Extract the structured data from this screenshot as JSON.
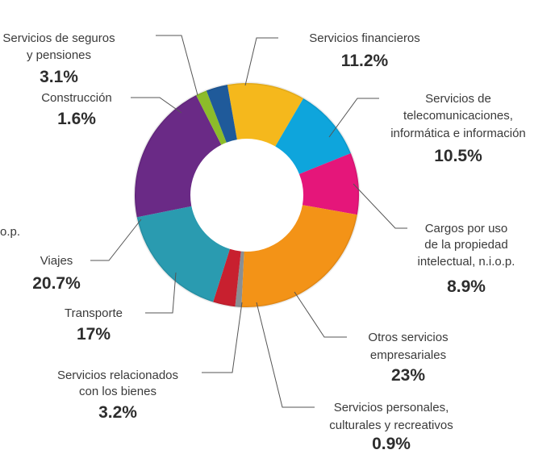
{
  "chart_data": {
    "type": "donut",
    "categories": [
      [
        "Servicios financieros"
      ],
      [
        "Servicios de",
        "telecomunicaciones,",
        "informática e información"
      ],
      [
        "Cargos por uso",
        "de la propiedad",
        "intelectual, n.i.o.p."
      ],
      [
        "Otros servicios",
        "empresariales"
      ],
      [
        "Servicios personales,",
        "culturales y recreativos"
      ],
      [
        "Servicios relacionados",
        "con los bienes"
      ],
      [
        "Transporte"
      ],
      [
        "Viajes"
      ],
      [
        "Construcción"
      ],
      [
        "Servicios de seguros",
        "y pensiones"
      ]
    ],
    "values": [
      11.2,
      10.5,
      8.9,
      23,
      0.9,
      3.2,
      17,
      20.7,
      1.6,
      3.1
    ],
    "value_labels": [
      "11.2%",
      "10.5%",
      "8.9%",
      "23%",
      "0.9%",
      "3.2%",
      "17%",
      "20.7%",
      "1.6%",
      "3.1%"
    ],
    "colors": [
      "#f5b81c",
      "#0ea5dc",
      "#e5167a",
      "#f39317",
      "#8a8f93",
      "#c8202f",
      "#2a9bb0",
      "#6a2a86",
      "#8cbc2a",
      "#1f5a9a"
    ],
    "annotations": [
      "o.p."
    ]
  }
}
